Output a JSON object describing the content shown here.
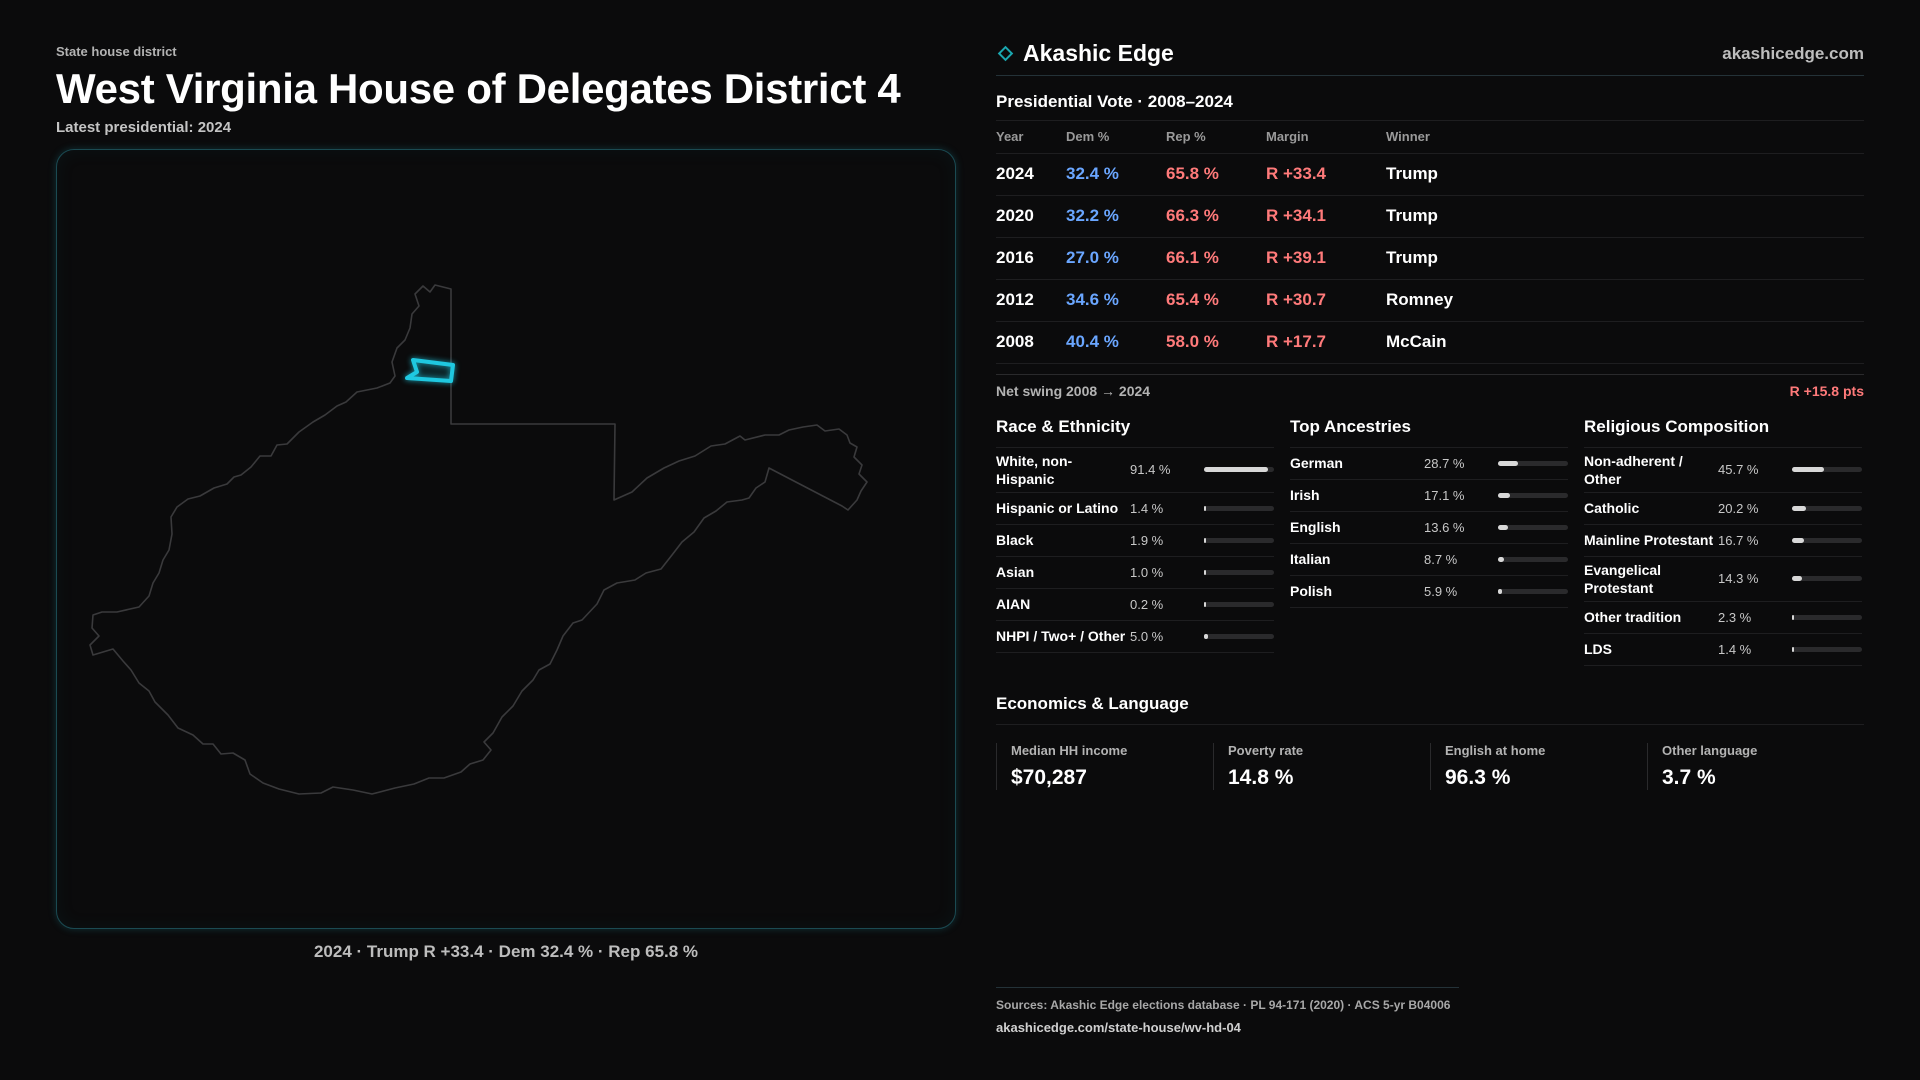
{
  "header": {
    "kicker": "State house district",
    "title": "West Virginia House of Delegates District 4",
    "subtitle": "Latest presidential: 2024"
  },
  "map": {
    "caption": "2024 · Trump R +33.4 · Dem 32.4 % · Rep 65.8 %",
    "state_outline_color": "#3a3a3c",
    "district_color": "#1fc8e0"
  },
  "brand": {
    "name": "Akashic Edge",
    "url": "akashicedge.com",
    "icon": "diamond-icon",
    "accent": "#1aa7b0"
  },
  "presidential": {
    "title": "Presidential Vote · 2008–2024",
    "columns": [
      "Year",
      "Dem %",
      "Rep %",
      "Margin",
      "Winner"
    ],
    "rows": [
      {
        "year": "2024",
        "dem": "32.4 %",
        "rep": "65.8 %",
        "margin": "R +33.4",
        "winner": "Trump"
      },
      {
        "year": "2020",
        "dem": "32.2 %",
        "rep": "66.3 %",
        "margin": "R +34.1",
        "winner": "Trump"
      },
      {
        "year": "2016",
        "dem": "27.0 %",
        "rep": "66.1 %",
        "margin": "R +39.1",
        "winner": "Trump"
      },
      {
        "year": "2012",
        "dem": "34.6 %",
        "rep": "65.4 %",
        "margin": "R +30.7",
        "winner": "Romney"
      },
      {
        "year": "2008",
        "dem": "40.4 %",
        "rep": "58.0 %",
        "margin": "R +17.7",
        "winner": "McCain"
      }
    ],
    "dem_color": "#6aa6ff",
    "rep_color": "#ff7a7a"
  },
  "swing": {
    "label": "Net swing 2008 → 2024",
    "value": "R +15.8 pts"
  },
  "race": {
    "title": "Race & Ethnicity",
    "items": [
      {
        "label": "White, non-Hispanic",
        "value": "91.4 %",
        "pct": 91.4
      },
      {
        "label": "Hispanic or Latino",
        "value": "1.4 %",
        "pct": 1.4
      },
      {
        "label": "Black",
        "value": "1.9 %",
        "pct": 1.9
      },
      {
        "label": "Asian",
        "value": "1.0 %",
        "pct": 1.0
      },
      {
        "label": "AIAN",
        "value": "0.2 %",
        "pct": 0.2
      },
      {
        "label": "NHPI / Two+ / Other",
        "value": "5.0 %",
        "pct": 5.0
      }
    ]
  },
  "ancestry": {
    "title": "Top Ancestries",
    "items": [
      {
        "label": "German",
        "value": "28.7 %",
        "pct": 28.7
      },
      {
        "label": "Irish",
        "value": "17.1 %",
        "pct": 17.1
      },
      {
        "label": "English",
        "value": "13.6 %",
        "pct": 13.6
      },
      {
        "label": "Italian",
        "value": "8.7 %",
        "pct": 8.7
      },
      {
        "label": "Polish",
        "value": "5.9 %",
        "pct": 5.9
      }
    ]
  },
  "religion": {
    "title": "Religious Composition",
    "items": [
      {
        "label": "Non-adherent / Other",
        "value": "45.7 %",
        "pct": 45.7
      },
      {
        "label": "Catholic",
        "value": "20.2 %",
        "pct": 20.2
      },
      {
        "label": "Mainline Protestant",
        "value": "16.7 %",
        "pct": 16.7
      },
      {
        "label": "Evangelical Protestant",
        "value": "14.3 %",
        "pct": 14.3
      },
      {
        "label": "Other tradition",
        "value": "2.3 %",
        "pct": 2.3
      },
      {
        "label": "LDS",
        "value": "1.4 %",
        "pct": 1.4
      }
    ]
  },
  "economics": {
    "title": "Economics & Language",
    "items": [
      {
        "label": "Median HH income",
        "value": "$70,287"
      },
      {
        "label": "Poverty rate",
        "value": "14.8 %"
      },
      {
        "label": "English at home",
        "value": "96.3 %"
      },
      {
        "label": "Other language",
        "value": "3.7 %"
      }
    ]
  },
  "footer": {
    "sources": "Sources: Akashic Edge elections database · PL 94-171 (2020) · ACS 5-yr B04006",
    "url": "akashicedge.com/state-house/wv-hd-04"
  }
}
